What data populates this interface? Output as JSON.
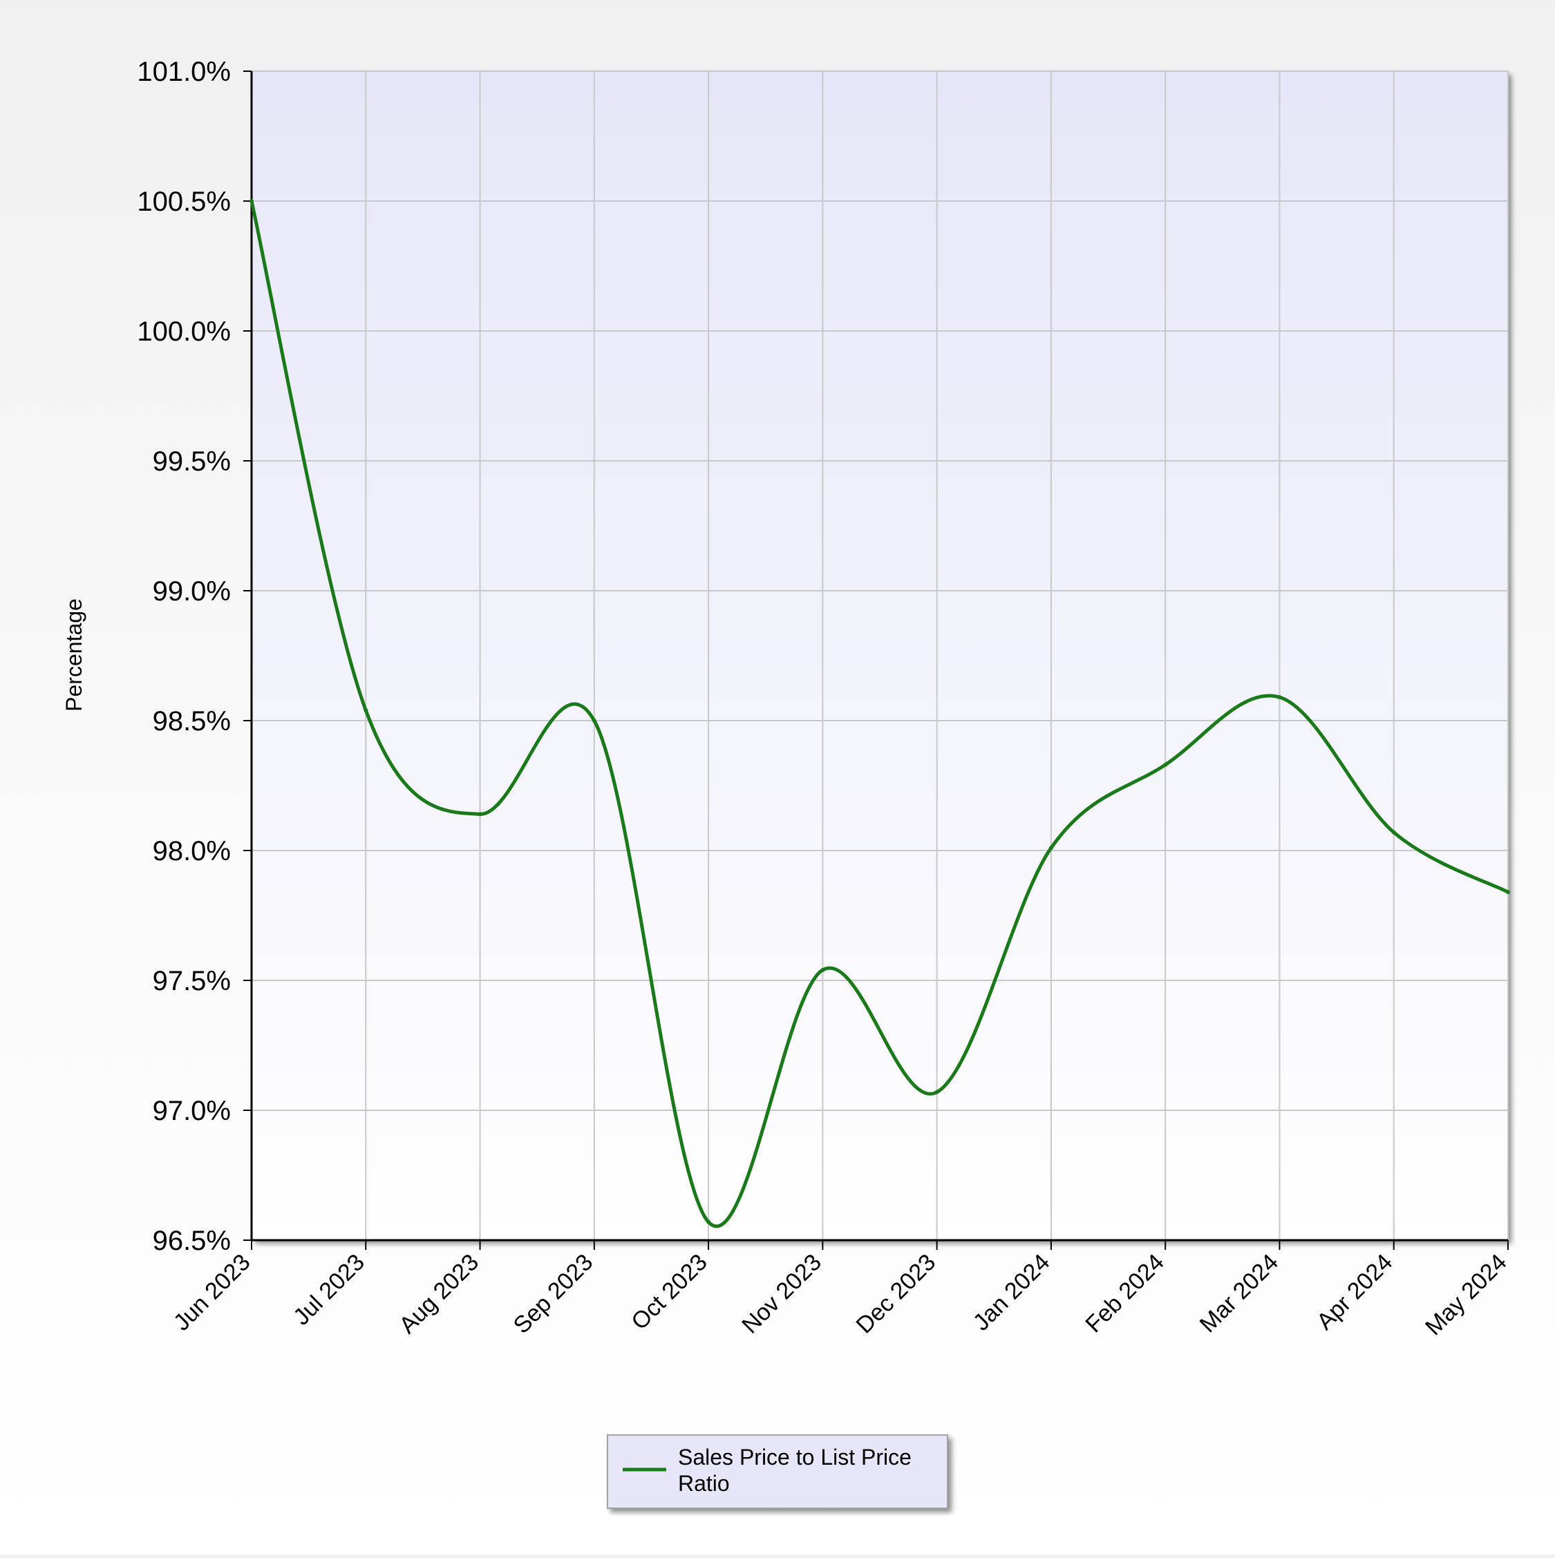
{
  "chart_data": {
    "type": "line",
    "title": "",
    "xlabel": "",
    "ylabel": "Percentage",
    "categories": [
      "Jun 2023",
      "Jul 2023",
      "Aug 2023",
      "Sep 2023",
      "Oct 2023",
      "Nov 2023",
      "Dec 2023",
      "Jan 2024",
      "Feb 2024",
      "Mar 2024",
      "Apr 2024",
      "May 2024"
    ],
    "series": [
      {
        "name": "Sales Price to List Price Ratio",
        "color": "#1a7a1a",
        "values": [
          100.5,
          98.54,
          98.14,
          98.5,
          96.57,
          97.54,
          97.07,
          98.01,
          98.33,
          98.59,
          98.07,
          97.84
        ]
      }
    ],
    "ylim": [
      96.5,
      101.0
    ],
    "y_ticks": [
      96.5,
      97.0,
      97.5,
      98.0,
      98.5,
      99.0,
      99.5,
      100.0,
      100.5,
      101.0
    ],
    "y_tick_labels": [
      "96.5%",
      "97.0%",
      "97.5%",
      "98.0%",
      "98.5%",
      "99.0%",
      "99.5%",
      "100.0%",
      "100.5%",
      "101.0%"
    ],
    "grid": true,
    "smooth": true,
    "legend": {
      "position": "bottom-center",
      "lines": [
        "Sales Price to List Price",
        "Ratio"
      ]
    },
    "colors": {
      "plot_bg_top": "#e6e6f8",
      "plot_bg_bottom": "#ffffff",
      "grid": "#c8c8c8",
      "axis": "#000000",
      "legend_bg": "#e6e6f8",
      "legend_border": "#a0a0a8"
    }
  }
}
